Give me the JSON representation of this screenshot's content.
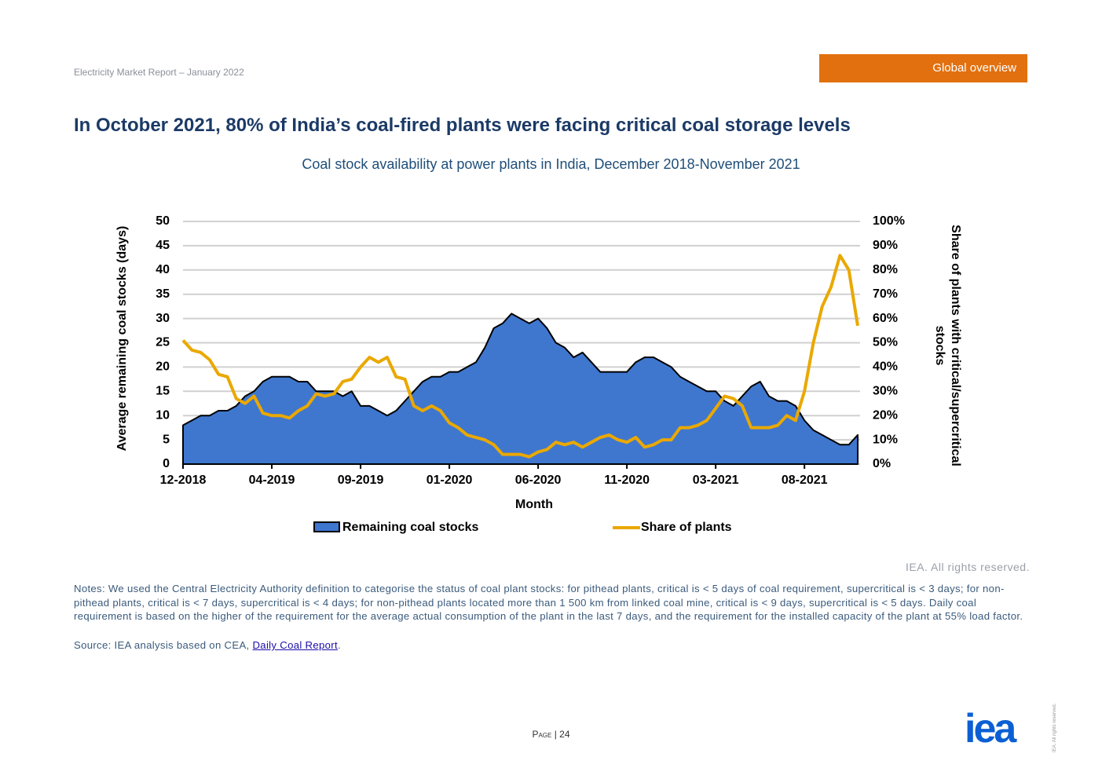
{
  "header": {
    "report": "Electricity Market Report – January 2022",
    "section": "Global overview"
  },
  "title": "In October 2021, 80% of India’s coal-fired plants were facing critical coal storage levels",
  "chart_data": {
    "type": "area_line",
    "title": "Coal stock availability at power plants in India, December 2018-November 2021",
    "x_label": "Month",
    "y_label": "Average remaining coal stocks (days)",
    "y2_label": [
      "Share of plants with critical/supercritical",
      "stocks"
    ],
    "categories": [
      "12-2018",
      null,
      null,
      null,
      null,
      null,
      null,
      null,
      null,
      null,
      "04-2019",
      null,
      null,
      null,
      null,
      null,
      null,
      null,
      null,
      null,
      "09-2019",
      null,
      null,
      null,
      null,
      null,
      null,
      null,
      null,
      null,
      "01-2020",
      null,
      null,
      null,
      null,
      null,
      null,
      null,
      null,
      null,
      "06-2020",
      null,
      null,
      null,
      null,
      null,
      null,
      null,
      null,
      null,
      "11-2020",
      null,
      null,
      null,
      null,
      null,
      null,
      null,
      null,
      null,
      "03-2021",
      null,
      null,
      null,
      null,
      null,
      null,
      null,
      null,
      null,
      "08-2021",
      null,
      null,
      null,
      null,
      null,
      null
    ],
    "series": [
      {
        "name": "Remaining coal stocks",
        "type": "area",
        "color": "#3f77cf",
        "values": [
          8,
          9,
          10,
          10,
          11,
          11,
          12,
          14,
          15,
          17,
          18,
          18,
          18,
          17,
          17,
          15,
          15,
          15,
          14,
          15,
          12,
          12,
          11,
          10,
          11,
          13,
          15,
          17,
          18,
          18,
          19,
          19,
          20,
          21,
          24,
          28,
          29,
          31,
          30,
          29,
          30,
          28,
          25,
          24,
          22,
          23,
          21,
          19,
          19,
          19,
          19,
          21,
          22,
          22,
          21,
          20,
          18,
          17,
          16,
          15,
          15,
          13,
          12,
          14,
          16,
          17,
          14,
          13,
          13,
          12,
          9,
          7,
          6,
          5,
          4,
          4,
          6
        ]
      },
      {
        "name": "Share of plants",
        "type": "line",
        "axis": "y2",
        "color": "#eaa800",
        "values": [
          51,
          47,
          46,
          43,
          37,
          36,
          27,
          25,
          28,
          21,
          20,
          20,
          19,
          22,
          24,
          29,
          28,
          29,
          34,
          35,
          40,
          44,
          42,
          44,
          36,
          35,
          24,
          22,
          24,
          22,
          17,
          15,
          12,
          11,
          10,
          8,
          4,
          4,
          4,
          3,
          5,
          6,
          9,
          8,
          9,
          7,
          9,
          11,
          12,
          10,
          9,
          11,
          7,
          8,
          10,
          10,
          15,
          15,
          16,
          18,
          23,
          28,
          27,
          24,
          15,
          15,
          15,
          16,
          20,
          18,
          30,
          50,
          65,
          73,
          86,
          80,
          57
        ]
      }
    ],
    "ylim": [
      0,
      50
    ],
    "yticks": [
      0,
      5,
      10,
      15,
      20,
      25,
      30,
      35,
      40,
      45,
      50
    ],
    "y2lim": [
      0,
      100
    ],
    "y2ticks": [
      {
        "value": 0,
        "label": "0%"
      },
      {
        "value": 10,
        "label": "10%"
      },
      {
        "value": 20,
        "label": "20%"
      },
      {
        "value": 30,
        "label": "30%"
      },
      {
        "value": 40,
        "label": "40%"
      },
      {
        "value": 50,
        "label": "50%"
      },
      {
        "value": 60,
        "label": "60%"
      },
      {
        "value": 70,
        "label": "70%"
      },
      {
        "value": 80,
        "label": "80%"
      },
      {
        "value": 90,
        "label": "90%"
      },
      {
        "value": 100,
        "label": "100%"
      }
    ],
    "grid": true,
    "legend": "bottom"
  },
  "footer": {
    "rights": "IEA. All rights reserved.",
    "notes": "Notes: We used the Central Electricity Authority definition to categorise the status of coal plant stocks: for pithead plants, critical is < 5 days of coal requirement, supercritical is < 3 days; for non-pithead plants, critical is < 7 days, supercritical is < 4 days; for non-pithead plants located more than 1 500 km from linked coal mine, critical is < 9 days, supercritical is < 5 days. Daily coal requirement is based on the higher of the requirement for the average actual consumption of the plant in the last 7 days, and the requirement for the installed capacity of the plant at 55% load factor.",
    "source": "Source: IEA analysis based on CEA, ",
    "source_link": "Daily Coal Report",
    "source_end": ".",
    "page_word": "Page",
    "page_number": "| 24",
    "logo": "iea",
    "side_rights": "IEA. All rights reserved."
  }
}
